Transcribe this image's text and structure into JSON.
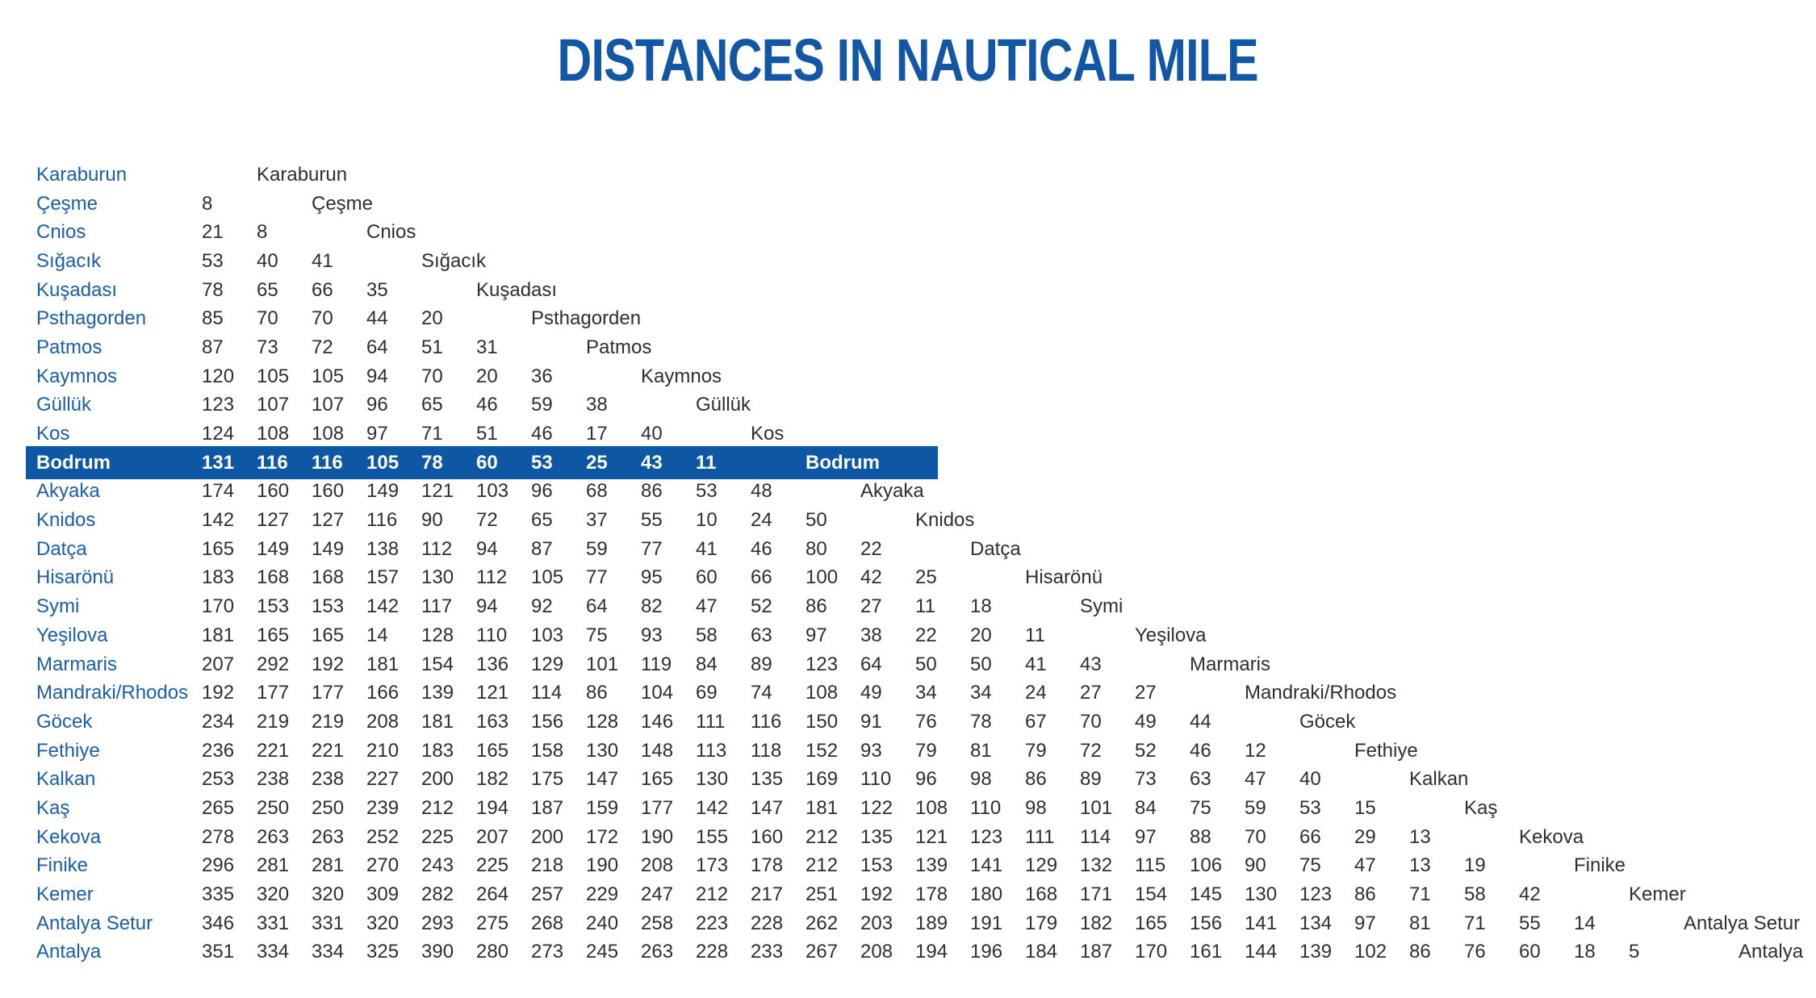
{
  "title": "DISTANCES IN NAUTICAL MILE",
  "colors": {
    "title_blue": "#1257A5",
    "label_blue": "#1A5DA8",
    "highlight_bg": "#0E57A4",
    "highlight_text": "#FFFFFF",
    "number_ink": "#2F2F2F",
    "background": "#FFFFFF"
  },
  "highlighted_location": "Bodrum",
  "chart_data": {
    "type": "table",
    "title": "DISTANCES IN NAUTICAL MILE",
    "description_visible": "Lower-triangular distance matrix; each row lists distances in nautical miles to all locations above it, with the location name repeated along the diagonal.",
    "locations": [
      "Karaburun",
      "Çeşme",
      "Cnios",
      "Sığacık",
      "Kuşadası",
      "Psthagorden",
      "Patmos",
      "Kaymnos",
      "Güllük",
      "Kos",
      "Bodrum",
      "Akyaka",
      "Knidos",
      "Datça",
      "Hisarönü",
      "Symi",
      "Yeşilova",
      "Marmaris",
      "Mandraki/Rhodos",
      "Göcek",
      "Fethiye",
      "Kalkan",
      "Kaş",
      "Kekova",
      "Finike",
      "Kemer",
      "Antalya Setur",
      "Antalya"
    ],
    "rows": [
      {
        "label": "Karaburun",
        "values": []
      },
      {
        "label": "Çeşme",
        "values": [
          8
        ]
      },
      {
        "label": "Cnios",
        "values": [
          21,
          8
        ]
      },
      {
        "label": "Sığacık",
        "values": [
          53,
          40,
          41
        ]
      },
      {
        "label": "Kuşadası",
        "values": [
          78,
          65,
          66,
          35
        ]
      },
      {
        "label": "Psthagorden",
        "values": [
          85,
          70,
          70,
          44,
          20
        ]
      },
      {
        "label": "Patmos",
        "values": [
          87,
          73,
          72,
          64,
          51,
          31
        ]
      },
      {
        "label": "Kaymnos",
        "values": [
          120,
          105,
          105,
          94,
          70,
          20,
          36
        ]
      },
      {
        "label": "Güllük",
        "values": [
          123,
          107,
          107,
          96,
          65,
          46,
          59,
          38
        ]
      },
      {
        "label": "Kos",
        "values": [
          124,
          108,
          108,
          97,
          71,
          51,
          46,
          17,
          40
        ]
      },
      {
        "label": "Bodrum",
        "values": [
          131,
          116,
          116,
          105,
          78,
          60,
          53,
          25,
          43,
          11
        ],
        "highlighted": true
      },
      {
        "label": "Akyaka",
        "values": [
          174,
          160,
          160,
          149,
          121,
          103,
          96,
          68,
          86,
          53,
          48
        ]
      },
      {
        "label": "Knidos",
        "values": [
          142,
          127,
          127,
          116,
          90,
          72,
          65,
          37,
          55,
          10,
          24,
          50
        ]
      },
      {
        "label": "Datça",
        "values": [
          165,
          149,
          149,
          138,
          112,
          94,
          87,
          59,
          77,
          41,
          46,
          80,
          22
        ]
      },
      {
        "label": "Hisarönü",
        "values": [
          183,
          168,
          168,
          157,
          130,
          112,
          105,
          77,
          95,
          60,
          66,
          100,
          42,
          25
        ]
      },
      {
        "label": "Symi",
        "values": [
          170,
          153,
          153,
          142,
          117,
          94,
          92,
          64,
          82,
          47,
          52,
          86,
          27,
          11,
          18
        ]
      },
      {
        "label": "Yeşilova",
        "values": [
          181,
          165,
          165,
          14,
          128,
          110,
          103,
          75,
          93,
          58,
          63,
          97,
          38,
          22,
          20,
          11
        ]
      },
      {
        "label": "Marmaris",
        "values": [
          207,
          292,
          192,
          181,
          154,
          136,
          129,
          101,
          119,
          84,
          89,
          123,
          64,
          50,
          50,
          41,
          43
        ]
      },
      {
        "label": "Mandraki/Rhodos",
        "values": [
          192,
          177,
          177,
          166,
          139,
          121,
          114,
          86,
          104,
          69,
          74,
          108,
          49,
          34,
          34,
          24,
          27,
          27
        ]
      },
      {
        "label": "Göcek",
        "values": [
          234,
          219,
          219,
          208,
          181,
          163,
          156,
          128,
          146,
          111,
          116,
          150,
          91,
          76,
          78,
          67,
          70,
          49,
          44
        ]
      },
      {
        "label": "Fethiye",
        "values": [
          236,
          221,
          221,
          210,
          183,
          165,
          158,
          130,
          148,
          113,
          118,
          152,
          93,
          79,
          81,
          79,
          72,
          52,
          46,
          12
        ]
      },
      {
        "label": "Kalkan",
        "values": [
          253,
          238,
          238,
          227,
          200,
          182,
          175,
          147,
          165,
          130,
          135,
          169,
          110,
          96,
          98,
          86,
          89,
          73,
          63,
          47,
          40
        ]
      },
      {
        "label": "Kaş",
        "values": [
          265,
          250,
          250,
          239,
          212,
          194,
          187,
          159,
          177,
          142,
          147,
          181,
          122,
          108,
          110,
          98,
          101,
          84,
          75,
          59,
          53,
          15
        ]
      },
      {
        "label": "Kekova",
        "values": [
          278,
          263,
          263,
          252,
          225,
          207,
          200,
          172,
          190,
          155,
          160,
          212,
          135,
          121,
          123,
          111,
          114,
          97,
          88,
          70,
          66,
          29,
          13
        ]
      },
      {
        "label": "Finike",
        "values": [
          296,
          281,
          281,
          270,
          243,
          225,
          218,
          190,
          208,
          173,
          178,
          212,
          153,
          139,
          141,
          129,
          132,
          115,
          106,
          90,
          75,
          47,
          13,
          19
        ]
      },
      {
        "label": "Kemer",
        "values": [
          335,
          320,
          320,
          309,
          282,
          264,
          257,
          229,
          247,
          212,
          217,
          251,
          192,
          178,
          180,
          168,
          171,
          154,
          145,
          130,
          123,
          86,
          71,
          58,
          42
        ]
      },
      {
        "label": "Antalya Setur",
        "values": [
          346,
          331,
          331,
          320,
          293,
          275,
          268,
          240,
          258,
          223,
          228,
          262,
          203,
          189,
          191,
          179,
          182,
          165,
          156,
          141,
          134,
          97,
          81,
          71,
          55,
          14
        ]
      },
      {
        "label": "Antalya",
        "values": [
          351,
          334,
          334,
          325,
          390,
          280,
          273,
          245,
          263,
          228,
          233,
          267,
          208,
          194,
          196,
          184,
          187,
          170,
          161,
          144,
          139,
          102,
          86,
          76,
          60,
          18,
          5
        ]
      }
    ]
  }
}
